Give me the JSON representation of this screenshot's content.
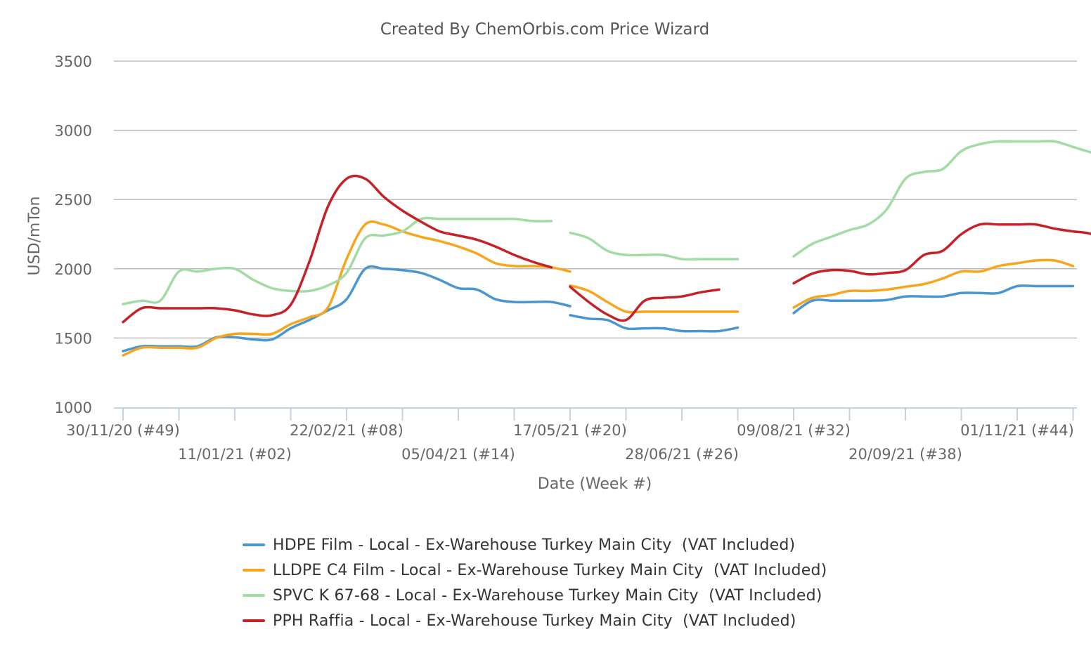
{
  "chart_data": {
    "type": "line",
    "title": "Created By ChemOrbis.com Price Wizard",
    "xlabel": "Date (Week #)",
    "ylabel": "USD/mTon",
    "ylim": [
      1000,
      3500
    ],
    "yticks": [
      1000,
      1500,
      2000,
      2500,
      3000,
      3500
    ],
    "x_tick_labels": [
      {
        "week": 0,
        "label": "30/11/20 (#49)"
      },
      {
        "week": 6,
        "label": "11/01/21 (#02)"
      },
      {
        "week": 12,
        "label": "22/02/21 (#08)"
      },
      {
        "week": 18,
        "label": "05/04/21 (#14)"
      },
      {
        "week": 24,
        "label": "17/05/21 (#20)"
      },
      {
        "week": 30,
        "label": "28/06/21 (#26)"
      },
      {
        "week": 36,
        "label": "09/08/21 (#32)"
      },
      {
        "week": 42,
        "label": "20/09/21 (#38)"
      },
      {
        "week": 48,
        "label": "01/11/21 (#44)"
      }
    ],
    "x_range_weeks": [
      0,
      51
    ],
    "grid": true,
    "legend_position": "bottom",
    "series": [
      {
        "name": "HDPE Film - Local - Ex-Warehouse Turkey Main City  (VAT Included)",
        "color": "#4a96cf",
        "segments": [
          [
            [
              0,
              1405
            ],
            [
              1,
              1440
            ],
            [
              2,
              1440
            ],
            [
              3,
              1440
            ],
            [
              4,
              1440
            ],
            [
              5,
              1505
            ],
            [
              6,
              1505
            ],
            [
              7,
              1490
            ],
            [
              8,
              1490
            ],
            [
              9,
              1570
            ],
            [
              10,
              1630
            ],
            [
              11,
              1700
            ],
            [
              12,
              1780
            ],
            [
              13,
              2000
            ],
            [
              14,
              2000
            ],
            [
              15,
              1990
            ],
            [
              16,
              1970
            ],
            [
              17,
              1920
            ],
            [
              18,
              1860
            ],
            [
              19,
              1850
            ],
            [
              20,
              1780
            ],
            [
              21,
              1760
            ],
            [
              22,
              1760
            ],
            [
              23,
              1760
            ],
            [
              24,
              1730
            ]
          ],
          [
            [
              24,
              1665
            ],
            [
              25,
              1640
            ],
            [
              26,
              1630
            ],
            [
              27,
              1570
            ],
            [
              28,
              1570
            ],
            [
              29,
              1570
            ],
            [
              30,
              1550
            ],
            [
              31,
              1550
            ],
            [
              32,
              1550
            ],
            [
              33,
              1575
            ]
          ],
          [
            [
              36,
              1680
            ],
            [
              37,
              1770
            ],
            [
              38,
              1770
            ],
            [
              39,
              1770
            ],
            [
              40,
              1770
            ],
            [
              41,
              1775
            ],
            [
              42,
              1800
            ],
            [
              43,
              1800
            ],
            [
              44,
              1800
            ],
            [
              45,
              1825
            ],
            [
              46,
              1825
            ],
            [
              47,
              1825
            ],
            [
              48,
              1875
            ],
            [
              49,
              1875
            ],
            [
              50,
              1875
            ],
            [
              51,
              1875
            ]
          ]
        ]
      },
      {
        "name": "LLDPE C4 Film - Local - Ex-Warehouse Turkey Main City  (VAT Included)",
        "color": "#f7a51c",
        "segments": [
          [
            [
              0,
              1375
            ],
            [
              1,
              1430
            ],
            [
              2,
              1430
            ],
            [
              3,
              1430
            ],
            [
              4,
              1430
            ],
            [
              5,
              1500
            ],
            [
              6,
              1530
            ],
            [
              7,
              1530
            ],
            [
              8,
              1530
            ],
            [
              9,
              1600
            ],
            [
              10,
              1650
            ],
            [
              11,
              1720
            ],
            [
              12,
              2070
            ],
            [
              13,
              2320
            ],
            [
              14,
              2320
            ],
            [
              15,
              2270
            ],
            [
              16,
              2230
            ],
            [
              17,
              2200
            ],
            [
              18,
              2160
            ],
            [
              19,
              2110
            ],
            [
              20,
              2040
            ],
            [
              21,
              2020
            ],
            [
              22,
              2020
            ],
            [
              23,
              2010
            ],
            [
              24,
              1980
            ]
          ],
          [
            [
              24,
              1880
            ],
            [
              25,
              1840
            ],
            [
              26,
              1760
            ],
            [
              27,
              1690
            ],
            [
              28,
              1690
            ],
            [
              29,
              1690
            ],
            [
              30,
              1690
            ],
            [
              31,
              1690
            ],
            [
              32,
              1690
            ],
            [
              33,
              1690
            ]
          ],
          [
            [
              36,
              1720
            ],
            [
              37,
              1790
            ],
            [
              38,
              1810
            ],
            [
              39,
              1840
            ],
            [
              40,
              1840
            ],
            [
              41,
              1850
            ],
            [
              42,
              1870
            ],
            [
              43,
              1890
            ],
            [
              44,
              1930
            ],
            [
              45,
              1980
            ],
            [
              46,
              1980
            ],
            [
              47,
              2020
            ],
            [
              48,
              2040
            ],
            [
              49,
              2060
            ],
            [
              50,
              2060
            ],
            [
              51,
              2020
            ]
          ]
        ]
      },
      {
        "name": "SPVC K 67-68 - Local - Ex-Warehouse Turkey Main City  (VAT Included)",
        "color": "#a2dba3",
        "segments": [
          [
            [
              0,
              1745
            ],
            [
              1,
              1770
            ],
            [
              2,
              1770
            ],
            [
              3,
              1980
            ],
            [
              4,
              1980
            ],
            [
              5,
              2000
            ],
            [
              6,
              2000
            ],
            [
              7,
              1920
            ],
            [
              8,
              1860
            ],
            [
              9,
              1840
            ],
            [
              10,
              1840
            ],
            [
              11,
              1880
            ],
            [
              12,
              1970
            ],
            [
              13,
              2220
            ],
            [
              14,
              2240
            ],
            [
              15,
              2270
            ],
            [
              16,
              2360
            ],
            [
              17,
              2360
            ],
            [
              18,
              2360
            ],
            [
              19,
              2360
            ],
            [
              20,
              2360
            ],
            [
              21,
              2360
            ],
            [
              22,
              2345
            ],
            [
              23,
              2345
            ]
          ],
          [
            [
              24,
              2260
            ],
            [
              25,
              2220
            ],
            [
              26,
              2130
            ],
            [
              27,
              2100
            ],
            [
              28,
              2100
            ],
            [
              29,
              2100
            ],
            [
              30,
              2070
            ],
            [
              31,
              2070
            ],
            [
              32,
              2070
            ],
            [
              33,
              2070
            ]
          ],
          [
            [
              36,
              2090
            ],
            [
              37,
              2180
            ],
            [
              38,
              2230
            ],
            [
              39,
              2280
            ],
            [
              40,
              2320
            ],
            [
              41,
              2430
            ],
            [
              42,
              2650
            ],
            [
              43,
              2700
            ],
            [
              44,
              2720
            ],
            [
              45,
              2850
            ],
            [
              46,
              2900
            ],
            [
              47,
              2920
            ],
            [
              48,
              2920
            ],
            [
              49,
              2920
            ],
            [
              50,
              2920
            ],
            [
              51,
              2880
            ],
            [
              52,
              2840
            ],
            [
              53,
              2815
            ]
          ]
        ]
      },
      {
        "name": "PPH Raffia - Local - Ex-Warehouse Turkey Main City  (VAT Included)",
        "color": "#c42128",
        "segments": [
          [
            [
              0,
              1615
            ],
            [
              1,
              1715
            ],
            [
              2,
              1715
            ],
            [
              3,
              1715
            ],
            [
              4,
              1715
            ],
            [
              5,
              1715
            ],
            [
              6,
              1700
            ],
            [
              7,
              1670
            ],
            [
              8,
              1665
            ],
            [
              9,
              1740
            ],
            [
              10,
              2050
            ],
            [
              11,
              2450
            ],
            [
              12,
              2650
            ],
            [
              13,
              2650
            ],
            [
              14,
              2520
            ],
            [
              15,
              2420
            ],
            [
              16,
              2340
            ],
            [
              17,
              2270
            ],
            [
              18,
              2240
            ],
            [
              19,
              2210
            ],
            [
              20,
              2160
            ],
            [
              21,
              2100
            ],
            [
              22,
              2050
            ],
            [
              23,
              2010
            ]
          ],
          [
            [
              24,
              1870
            ],
            [
              25,
              1760
            ],
            [
              26,
              1670
            ],
            [
              27,
              1630
            ],
            [
              28,
              1770
            ],
            [
              29,
              1790
            ],
            [
              30,
              1800
            ],
            [
              31,
              1830
            ],
            [
              32,
              1850
            ]
          ],
          [
            [
              36,
              1895
            ],
            [
              37,
              1965
            ],
            [
              38,
              1990
            ],
            [
              39,
              1985
            ],
            [
              40,
              1960
            ],
            [
              41,
              1970
            ],
            [
              42,
              1990
            ],
            [
              43,
              2100
            ],
            [
              44,
              2130
            ],
            [
              45,
              2250
            ],
            [
              46,
              2320
            ],
            [
              47,
              2320
            ],
            [
              48,
              2320
            ],
            [
              49,
              2320
            ],
            [
              50,
              2290
            ],
            [
              51,
              2270
            ],
            [
              52,
              2250
            ],
            [
              53,
              2170
            ]
          ]
        ]
      }
    ]
  }
}
